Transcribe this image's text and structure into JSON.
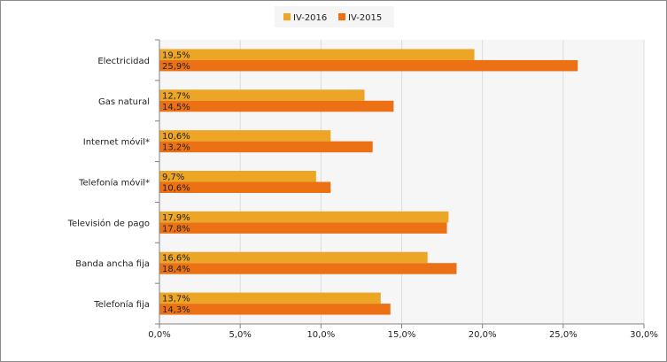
{
  "chart_data": {
    "type": "bar",
    "orientation": "horizontal",
    "title": "",
    "xlabel": "",
    "ylabel": "",
    "categories": [
      "Electricidad",
      "Gas natural",
      "Internet móvil*",
      "Telefonía móvil*",
      "Televisión de pago",
      "Banda ancha fija",
      "Telefonía fija"
    ],
    "series": [
      {
        "name": "IV-2016",
        "color": "#EDA526",
        "values": [
          19.5,
          12.7,
          10.6,
          9.7,
          17.9,
          16.6,
          13.7
        ],
        "labels": [
          "19,5%",
          "12,7%",
          "10,6%",
          "9,7%",
          "17,9%",
          "16,6%",
          "13,7%"
        ]
      },
      {
        "name": "IV-2015",
        "color": "#EC7115",
        "values": [
          25.9,
          14.5,
          13.2,
          10.6,
          17.8,
          18.4,
          14.3
        ],
        "labels": [
          "25,9%",
          "14,5%",
          "13,2%",
          "10,6%",
          "17,8%",
          "18,4%",
          "14,3%"
        ]
      }
    ],
    "xlim": [
      0,
      30
    ],
    "xticks": [
      0,
      5,
      10,
      15,
      20,
      25,
      30
    ],
    "xtick_labels": [
      "0,0%",
      "5,0%",
      "10,0%",
      "15,0%",
      "20,0%",
      "25,0%",
      "30,0%"
    ],
    "grid": true,
    "legend_position": "top-center"
  }
}
